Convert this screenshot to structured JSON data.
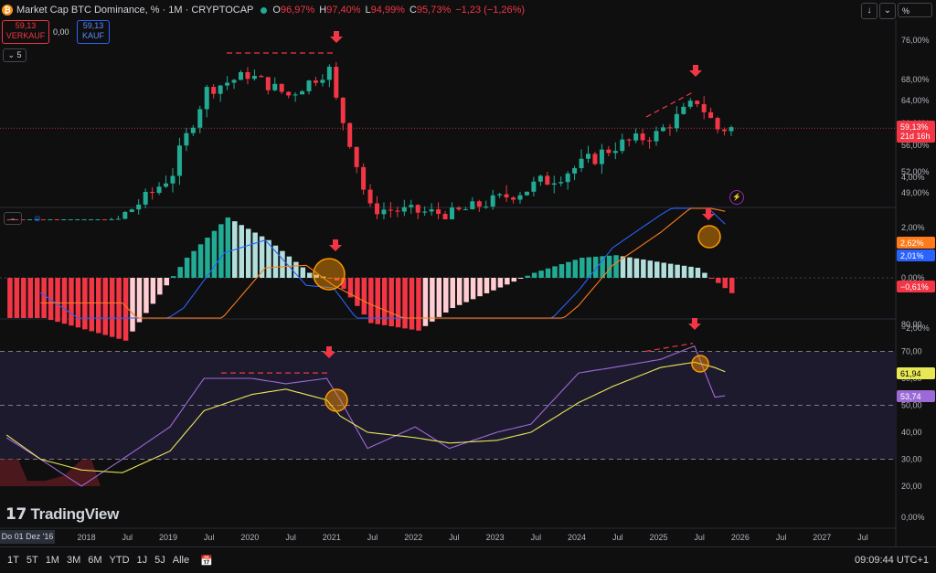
{
  "header": {
    "title": "Market Cap BTC Dominance, %  · 1M · CRYPTOCAP",
    "open_label": "O",
    "open": "96,97%",
    "high_label": "H",
    "high": "97,40%",
    "low_label": "L",
    "low": "94,99%",
    "close_label": "C",
    "close": "95,73%",
    "change": "−1,23 (−1,26%)"
  },
  "trade": {
    "sell_price": "59,13",
    "sell_label": "VERKAUF",
    "spread": "0,00",
    "buy_price": "59,13",
    "buy_label": "KAUF",
    "collapse_count": "5"
  },
  "toolbar": {
    "scale_label": "%"
  },
  "axes": {
    "price_ticks": [
      "76,00%",
      "68,00%",
      "64,00%",
      "60,00%",
      "56,00%",
      "52,00%",
      "49,00%"
    ],
    "macd_ticks": [
      "4,00%",
      "2,00%",
      "0,00%",
      "−2,00%"
    ],
    "rsi_ticks": [
      "80,00",
      "70,00",
      "60,00",
      "50,00",
      "40,00",
      "30,00",
      "20,00"
    ],
    "bottom_tick": "0,00%",
    "time_ticks": [
      "2018",
      "Jul",
      "2019",
      "Jul",
      "2020",
      "Jul",
      "2021",
      "Jul",
      "2022",
      "Jul",
      "2023",
      "Jul",
      "2024",
      "Jul",
      "2025",
      "Jul",
      "2026",
      "Jul",
      "2027",
      "Jul"
    ],
    "current_date": "Do 01 Dez '16"
  },
  "badges": {
    "price": "59,13%",
    "countdown": "21d 16h",
    "macd_signal": "2,62%",
    "macd_line": "2,01%",
    "macd_hist": "−0,61%",
    "rsi_ma": "61,94",
    "rsi": "53,74"
  },
  "colors": {
    "up": "#22ab94",
    "down": "#f23645",
    "rsi": "#9c6ad6",
    "rsi_ma": "#e8e857",
    "macd": "#2962ff",
    "signal": "#ff7a1a",
    "arrow": "#f23645",
    "circle": "#ff9800"
  },
  "bottombar": {
    "timeframes": [
      "1T",
      "5T",
      "1M",
      "3M",
      "6M",
      "YTD",
      "1J",
      "5J",
      "Alle"
    ],
    "clock": "09:09:44 UTC+1"
  },
  "brand": {
    "name": "TradingView"
  },
  "chart_data": [
    {
      "type": "candlestick",
      "title": "Market Cap BTC Dominance, %",
      "interval": "1M",
      "x": [
        "2017-12",
        "2018-06",
        "2019-01",
        "2019-06",
        "2019-12",
        "2020-06",
        "2020-12",
        "2021-01",
        "2021-06",
        "2022-06",
        "2023-06",
        "2024-01",
        "2024-06",
        "2024-12",
        "2025-06",
        "2025-09",
        "2025-11"
      ],
      "close": [
        38,
        45,
        52,
        66,
        69,
        65,
        70,
        64,
        46,
        45,
        50,
        53,
        56,
        58,
        64,
        59,
        59.13
      ],
      "ylim": [
        47,
        78
      ],
      "last_value": 59.13
    },
    {
      "type": "bar",
      "title": "MACD",
      "x": [
        "2017-06",
        "2018-06",
        "2019-03",
        "2019-09",
        "2020-03",
        "2020-09",
        "2021-01",
        "2021-06",
        "2022-01",
        "2022-06",
        "2023-06",
        "2024-01",
        "2024-06",
        "2025-01",
        "2025-06",
        "2025-11"
      ],
      "histogram": [
        -1.6,
        -2.5,
        0.8,
        2.4,
        1.5,
        0.2,
        -0.1,
        -1.8,
        -2.1,
        -1.2,
        0.2,
        0.8,
        0.9,
        0.6,
        0.4,
        -0.61
      ],
      "macd": [
        -0.6,
        -2.8,
        -1.2,
        1.0,
        1.5,
        -0.3,
        -0.4,
        -2.2,
        -4.0,
        -4.0,
        -2.5,
        -0.5,
        1.2,
        2.5,
        3.3,
        2.01
      ],
      "signal": [
        -1.0,
        -1.0,
        -3.5,
        -1.5,
        0.4,
        0.5,
        -0.3,
        -1.0,
        -1.8,
        -2.8,
        -2.7,
        -1.1,
        0.5,
        1.8,
        2.9,
        2.62
      ],
      "ylim": [
        -3,
        5
      ]
    },
    {
      "type": "line",
      "title": "RSI",
      "x": [
        "2017-01",
        "2017-06",
        "2017-12",
        "2018-06",
        "2019-01",
        "2019-06",
        "2020-01",
        "2020-06",
        "2020-12",
        "2021-02",
        "2021-06",
        "2022-01",
        "2022-06",
        "2023-01",
        "2023-06",
        "2024-01",
        "2024-06",
        "2025-01",
        "2025-06",
        "2025-09",
        "2025-11"
      ],
      "rsi": [
        38,
        30,
        20,
        30,
        42,
        60,
        60,
        58,
        60,
        52,
        34,
        42,
        34,
        40,
        43,
        62,
        64,
        67,
        72,
        53,
        53.74
      ],
      "rsi_ma": [
        39,
        30,
        26,
        25,
        33,
        48,
        54,
        56,
        52,
        46,
        40,
        38,
        36,
        37,
        40,
        51,
        57,
        64,
        66,
        64,
        61.94
      ],
      "ylim": [
        20,
        80
      ],
      "bands": [
        30,
        50,
        70
      ]
    }
  ]
}
